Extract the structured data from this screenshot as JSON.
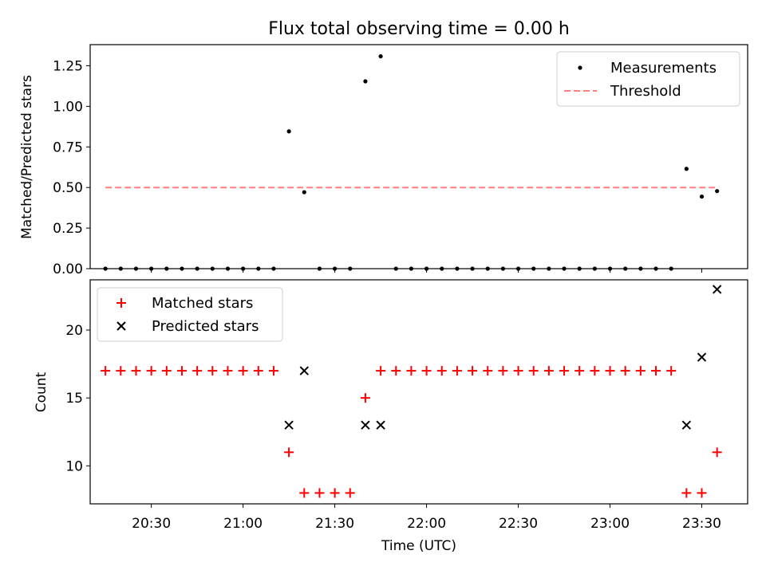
{
  "chart_data": [
    {
      "type": "scatter",
      "title": "Flux total observing time = 0.00 h",
      "xlabel": "",
      "ylabel": "Matched/Predicted stars",
      "xlim": [
        "20:10",
        "23:45"
      ],
      "ylim": [
        0,
        1.38
      ],
      "yticks": [
        "0.00",
        "0.25",
        "0.50",
        "0.75",
        "1.00",
        "1.25"
      ],
      "grid": false,
      "legend_position": "top-right",
      "series": [
        {
          "name": "Measurements",
          "color": "#000000",
          "marker": "dot",
          "x": [
            "20:15",
            "20:20",
            "20:25",
            "20:30",
            "20:35",
            "20:40",
            "20:45",
            "20:50",
            "20:55",
            "21:00",
            "21:05",
            "21:10",
            "21:15",
            "21:20",
            "21:25",
            "21:30",
            "21:35",
            "21:40",
            "21:45",
            "21:50",
            "21:55",
            "22:00",
            "22:05",
            "22:10",
            "22:15",
            "22:20",
            "22:25",
            "22:30",
            "22:35",
            "22:40",
            "22:45",
            "22:50",
            "22:55",
            "23:00",
            "23:05",
            "23:10",
            "23:15",
            "23:20",
            "23:25",
            "23:30",
            "23:35"
          ],
          "y": [
            0,
            0,
            0,
            0,
            0,
            0,
            0,
            0,
            0,
            0,
            0,
            0,
            0.846,
            0.471,
            0,
            0,
            0,
            1.154,
            1.308,
            0,
            0,
            0,
            0,
            0,
            0,
            0,
            0,
            0,
            0,
            0,
            0,
            0,
            0,
            0,
            0,
            0,
            0,
            0,
            0.615,
            0.444,
            0.478
          ]
        },
        {
          "name": "Threshold",
          "color": "#ff7f7f",
          "style": "dashed",
          "x": [
            "20:15",
            "23:35"
          ],
          "y": [
            0.5,
            0.5
          ]
        }
      ]
    },
    {
      "type": "scatter",
      "title": "",
      "xlabel": "Time (UTC)",
      "ylabel": "Count",
      "xlim": [
        "20:10",
        "23:45"
      ],
      "ylim": [
        7.2,
        23.7
      ],
      "xticks": [
        "20:30",
        "21:00",
        "21:30",
        "22:00",
        "22:30",
        "23:00",
        "23:30"
      ],
      "yticks": [
        "10",
        "15",
        "20"
      ],
      "grid": false,
      "legend_position": "top-left",
      "series": [
        {
          "name": "Matched stars",
          "color": "#ff0000",
          "marker": "plus",
          "x": [
            "20:15",
            "20:20",
            "20:25",
            "20:30",
            "20:35",
            "20:40",
            "20:45",
            "20:50",
            "20:55",
            "21:00",
            "21:05",
            "21:10",
            "21:15",
            "21:20",
            "21:25",
            "21:30",
            "21:35",
            "21:40",
            "21:45",
            "21:50",
            "21:55",
            "22:00",
            "22:05",
            "22:10",
            "22:15",
            "22:20",
            "22:25",
            "22:30",
            "22:35",
            "22:40",
            "22:45",
            "22:50",
            "22:55",
            "23:00",
            "23:05",
            "23:10",
            "23:15",
            "23:20",
            "23:25",
            "23:30",
            "23:35"
          ],
          "y": [
            17,
            17,
            17,
            17,
            17,
            17,
            17,
            17,
            17,
            17,
            17,
            17,
            11,
            8,
            8,
            8,
            8,
            15,
            17,
            17,
            17,
            17,
            17,
            17,
            17,
            17,
            17,
            17,
            17,
            17,
            17,
            17,
            17,
            17,
            17,
            17,
            17,
            17,
            8,
            8,
            11
          ]
        },
        {
          "name": "Predicted stars",
          "color": "#000000",
          "marker": "x",
          "x": [
            "21:15",
            "21:20",
            "21:40",
            "21:45",
            "23:25",
            "23:30",
            "23:35"
          ],
          "y": [
            13,
            17,
            13,
            13,
            13,
            18,
            23
          ]
        }
      ]
    }
  ]
}
